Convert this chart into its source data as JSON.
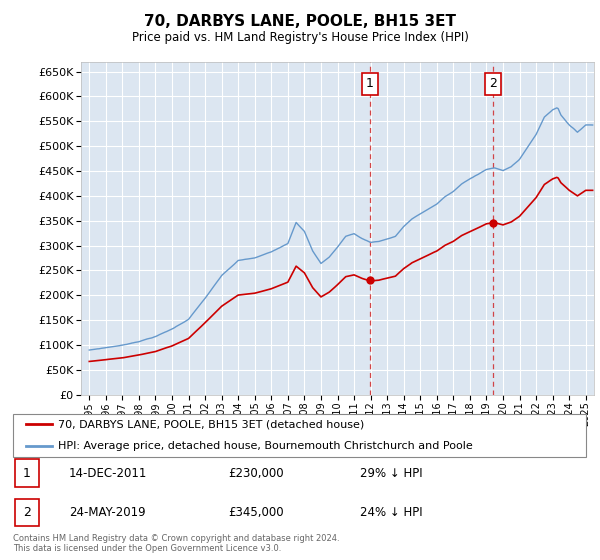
{
  "title": "70, DARBYS LANE, POOLE, BH15 3ET",
  "subtitle": "Price paid vs. HM Land Registry's House Price Index (HPI)",
  "property_color": "#cc0000",
  "hpi_color": "#6699cc",
  "background_color": "#dce6f1",
  "sale1_date": 2011.96,
  "sale1_price": 230000,
  "sale2_date": 2019.39,
  "sale2_price": 345000,
  "ylim_min": 0,
  "ylim_max": 670000,
  "xlim_min": 1994.5,
  "xlim_max": 2025.5,
  "footer": "Contains HM Land Registry data © Crown copyright and database right 2024.\nThis data is licensed under the Open Government Licence v3.0.",
  "legend_property": "70, DARBYS LANE, POOLE, BH15 3ET (detached house)",
  "legend_hpi": "HPI: Average price, detached house, Bournemouth Christchurch and Poole",
  "ann1_num": "1",
  "ann1_date": "14-DEC-2011",
  "ann1_price": "£230,000",
  "ann1_hpi": "29% ↓ HPI",
  "ann2_num": "2",
  "ann2_date": "24-MAY-2019",
  "ann2_price": "£345,000",
  "ann2_hpi": "24% ↓ HPI"
}
